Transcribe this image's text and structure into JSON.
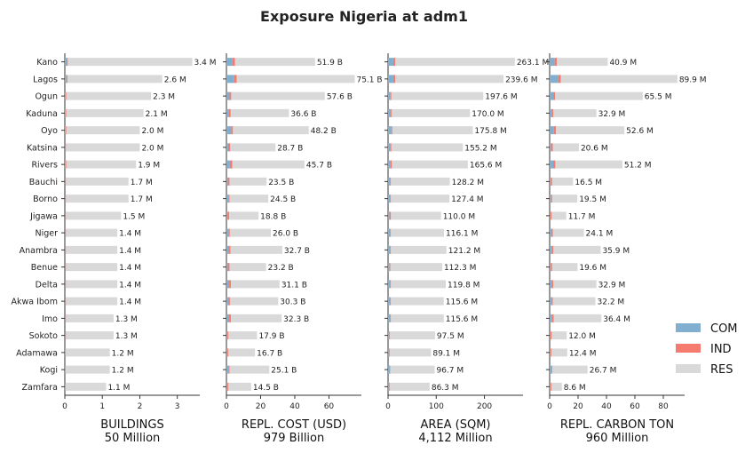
{
  "chart_data": {
    "type": "bar",
    "orientation": "horizontal",
    "stacked": true,
    "title": "Exposure Nigeria at adm1",
    "categories": [
      "Kano",
      "Lagos",
      "Ogun",
      "Kaduna",
      "Oyo",
      "Katsina",
      "Rivers",
      "Bauchi",
      "Borno",
      "Jigawa",
      "Niger",
      "Anambra",
      "Benue",
      "Delta",
      "Akwa Ibom",
      "Imo",
      "Sokoto",
      "Adamawa",
      "Kogi",
      "Zamfara"
    ],
    "legend": {
      "position": "right",
      "entries": [
        {
          "key": "COM",
          "label": "COM",
          "color": "#80afd0"
        },
        {
          "key": "IND",
          "label": "IND",
          "color": "#f47b6e"
        },
        {
          "key": "RES",
          "label": "RES",
          "color": "#d9d9d9"
        }
      ]
    },
    "panels": [
      {
        "key": "buildings",
        "xlabel": "BUILDINGS",
        "total": "50 Million",
        "xlim": [
          0,
          3.6
        ],
        "ticks": [
          0,
          1,
          2,
          3
        ],
        "totals": [
          3.4,
          2.6,
          2.3,
          2.1,
          2.0,
          2.0,
          1.9,
          1.7,
          1.7,
          1.5,
          1.4,
          1.4,
          1.4,
          1.4,
          1.4,
          1.3,
          1.3,
          1.2,
          1.2,
          1.1
        ],
        "labels": [
          "3.4 M",
          "2.6 M",
          "2.3 M",
          "2.1 M",
          "2.0 M",
          "2.0 M",
          "1.9 M",
          "1.7 M",
          "1.7 M",
          "1.5 M",
          "1.4 M",
          "1.4 M",
          "1.4 M",
          "1.4 M",
          "1.4 M",
          "1.3 M",
          "1.3 M",
          "1.2 M",
          "1.2 M",
          "1.1 M"
        ],
        "com": [
          0.05,
          0.04,
          0.02,
          0.02,
          0.02,
          0.01,
          0.02,
          0.01,
          0.01,
          0.01,
          0.01,
          0.01,
          0.01,
          0.01,
          0.01,
          0.01,
          0.01,
          0.01,
          0.01,
          0.01
        ],
        "ind": [
          0.03,
          0.03,
          0.02,
          0.02,
          0.02,
          0.02,
          0.02,
          0.02,
          0.02,
          0.02,
          0.02,
          0.02,
          0.02,
          0.02,
          0.02,
          0.02,
          0.02,
          0.01,
          0.01,
          0.01
        ]
      },
      {
        "key": "cost",
        "xlabel": "REPL. COST (USD)",
        "total": "979 Billion",
        "xlim": [
          0,
          79
        ],
        "ticks": [
          0,
          20,
          40,
          60
        ],
        "totals": [
          51.9,
          75.1,
          57.6,
          36.6,
          48.2,
          28.7,
          45.7,
          23.5,
          24.5,
          18.8,
          26.0,
          32.7,
          23.2,
          31.1,
          30.3,
          32.3,
          17.9,
          16.7,
          25.1,
          14.5
        ],
        "labels": [
          "51.9 B",
          "75.1 B",
          "57.6 B",
          "36.6 B",
          "48.2 B",
          "28.7 B",
          "45.7 B",
          "23.5 B",
          "24.5 B",
          "18.8 B",
          "26.0 B",
          "32.7 B",
          "23.2 B",
          "31.1 B",
          "30.3 B",
          "32.3 B",
          "17.9 B",
          "16.7 B",
          "25.1 B",
          "14.5 B"
        ],
        "com": [
          3.5,
          4.5,
          1.8,
          1.5,
          2.8,
          1.0,
          2.0,
          0.8,
          1.2,
          0.6,
          1.2,
          1.6,
          0.8,
          1.6,
          1.6,
          1.6,
          0.6,
          0.6,
          1.2,
          0.6
        ],
        "ind": [
          1.5,
          1.5,
          1.0,
          1.0,
          1.0,
          1.2,
          1.4,
          1.0,
          0.6,
          1.0,
          0.8,
          0.8,
          1.0,
          1.0,
          0.6,
          1.0,
          0.6,
          0.6,
          0.6,
          0.6
        ]
      },
      {
        "key": "area",
        "xlabel": "AREA (SQM)",
        "total": "4,112 Million",
        "xlim": [
          0,
          280
        ],
        "ticks": [
          0,
          100,
          200
        ],
        "totals": [
          263.1,
          239.6,
          197.6,
          170.0,
          175.8,
          155.2,
          165.6,
          128.2,
          127.4,
          110.0,
          116.1,
          121.2,
          112.3,
          119.8,
          115.6,
          115.6,
          97.5,
          89.1,
          96.7,
          86.3
        ],
        "labels": [
          "263.1 M",
          "239.6 M",
          "197.6 M",
          "170.0 M",
          "175.8 M",
          "155.2 M",
          "165.6 M",
          "128.2 M",
          "127.4 M",
          "110.0 M",
          "116.1 M",
          "121.2 M",
          "112.3 M",
          "119.8 M",
          "115.6 M",
          "115.6 M",
          "97.5 M",
          "89.1 M",
          "96.7 M",
          "86.3 M"
        ],
        "com": [
          11,
          11,
          5,
          6,
          7,
          4,
          5,
          4,
          4,
          3,
          4,
          4,
          3,
          4,
          4,
          4,
          3,
          3,
          4,
          3
        ],
        "ind": [
          4,
          4,
          2,
          2,
          2,
          3,
          3,
          2,
          2,
          3,
          2,
          2,
          2,
          2,
          2,
          2,
          1,
          1,
          1,
          1
        ]
      },
      {
        "key": "carbon",
        "xlabel": "REPL. CARBON TON",
        "total": "960 Million",
        "xlim": [
          0,
          95
        ],
        "ticks": [
          0,
          20,
          40,
          60,
          80
        ],
        "totals": [
          40.9,
          89.9,
          65.5,
          32.9,
          52.6,
          20.6,
          51.2,
          16.5,
          19.5,
          11.7,
          24.1,
          35.9,
          19.6,
          32.9,
          32.2,
          36.4,
          12.0,
          12.4,
          26.7,
          8.6
        ],
        "labels": [
          "40.9 M",
          "89.9 M",
          "65.5 M",
          "32.9 M",
          "52.6 M",
          "20.6 M",
          "51.2 M",
          "16.5 M",
          "19.5 M",
          "11.7 M",
          "24.1 M",
          "35.9 M",
          "19.6 M",
          "32.9 M",
          "32.2 M",
          "36.4 M",
          "12.0 M",
          "12.4 M",
          "26.7 M",
          "8.6 M"
        ],
        "com": [
          3.5,
          6.0,
          2.8,
          1.5,
          3.0,
          1.0,
          2.5,
          0.8,
          1.0,
          0.6,
          1.2,
          1.8,
          0.8,
          1.8,
          1.6,
          1.8,
          0.6,
          0.6,
          1.4,
          0.6
        ],
        "ind": [
          1.5,
          1.8,
          1.0,
          1.0,
          1.5,
          1.2,
          1.5,
          1.0,
          0.8,
          0.8,
          1.0,
          0.8,
          1.0,
          0.8,
          0.6,
          1.0,
          0.8,
          0.6,
          0.6,
          0.6
        ]
      }
    ]
  }
}
